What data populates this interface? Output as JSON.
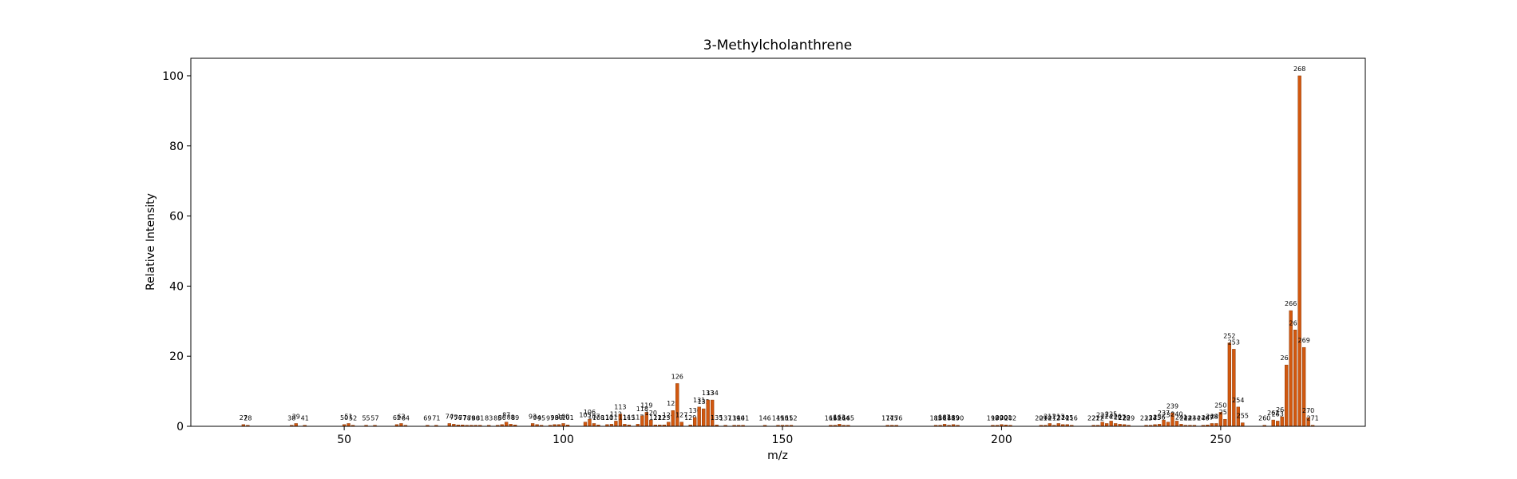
{
  "chart_data": {
    "type": "bar",
    "title": "3-Methylcholanthrene",
    "xlabel": "m/z",
    "ylabel": "Relative Intensity",
    "color": "#d2580f",
    "x": [
      27,
      28,
      38,
      39,
      41,
      50,
      51,
      52,
      55,
      57,
      62,
      63,
      64,
      69,
      71,
      74,
      75,
      76,
      77,
      78,
      79,
      80,
      81,
      83,
      85,
      86,
      87,
      88,
      89,
      93,
      94,
      95,
      97,
      98,
      99,
      100,
      101,
      105,
      106,
      107,
      108,
      110,
      111,
      112,
      113,
      114,
      115,
      117,
      118,
      119,
      120,
      121,
      122,
      123,
      124,
      125,
      126,
      127,
      129,
      130,
      131,
      132,
      133,
      134,
      135,
      137,
      139,
      140,
      141,
      146,
      149,
      150,
      151,
      152,
      161,
      162,
      163,
      164,
      165,
      174,
      175,
      176,
      185,
      186,
      187,
      188,
      189,
      190,
      198,
      199,
      200,
      201,
      202,
      209,
      210,
      211,
      212,
      213,
      214,
      215,
      216,
      221,
      222,
      223,
      224,
      225,
      226,
      227,
      228,
      229,
      233,
      234,
      235,
      236,
      237,
      238,
      239,
      240,
      241,
      242,
      243,
      244,
      246,
      247,
      248,
      249,
      250,
      251,
      252,
      253,
      254,
      255,
      260,
      262,
      263,
      264,
      265,
      266,
      267,
      268,
      269,
      270,
      271
    ],
    "values": [
      0.5,
      0.3,
      0.3,
      0.8,
      0.3,
      0.5,
      0.8,
      0.3,
      0.3,
      0.3,
      0.5,
      0.8,
      0.3,
      0.3,
      0.3,
      0.8,
      0.6,
      0.4,
      0.4,
      0.3,
      0.3,
      0.3,
      0.3,
      0.3,
      0.3,
      0.5,
      1.2,
      0.6,
      0.4,
      0.8,
      0.5,
      0.3,
      0.3,
      0.5,
      0.5,
      0.8,
      0.4,
      1.2,
      2,
      0.8,
      0.4,
      0.5,
      0.6,
      1.5,
      3.5,
      0.6,
      0.4,
      0.6,
      3,
      4,
      1.8,
      0.4,
      0.4,
      0.4,
      1.2,
      4.5,
      12.2,
      1.2,
      0.4,
      2.5,
      5.5,
      5,
      7.5,
      7.5,
      0.4,
      0.3,
      0.3,
      0.3,
      0.3,
      0.3,
      0.3,
      0.3,
      0.3,
      0.3,
      0.3,
      0.3,
      0.6,
      0.3,
      0.3,
      0.3,
      0.3,
      0.3,
      0.3,
      0.3,
      0.6,
      0.3,
      0.5,
      0.3,
      0.3,
      0.3,
      0.5,
      0.4,
      0.3,
      0.3,
      0.3,
      0.8,
      0.3,
      0.8,
      0.5,
      0.5,
      0.3,
      0.3,
      0.3,
      1.2,
      0.8,
      1.5,
      0.8,
      0.6,
      0.5,
      0.3,
      0.3,
      0.3,
      0.5,
      0.6,
      1.8,
      1.2,
      3.8,
      1.5,
      0.6,
      0.3,
      0.3,
      0.3,
      0.3,
      0.4,
      0.8,
      0.8,
      4,
      2,
      23.8,
      22,
      5.5,
      1,
      0.3,
      1.8,
      1.5,
      2.7,
      17.5,
      33,
      27.5,
      100,
      22.5,
      2.5,
      0.3
    ],
    "xlim": [
      15,
      283
    ],
    "ylim": [
      0,
      105
    ],
    "xticks": [
      50,
      100,
      150,
      200,
      250
    ],
    "yticks": [
      0,
      20,
      40,
      60,
      80,
      100
    ]
  }
}
